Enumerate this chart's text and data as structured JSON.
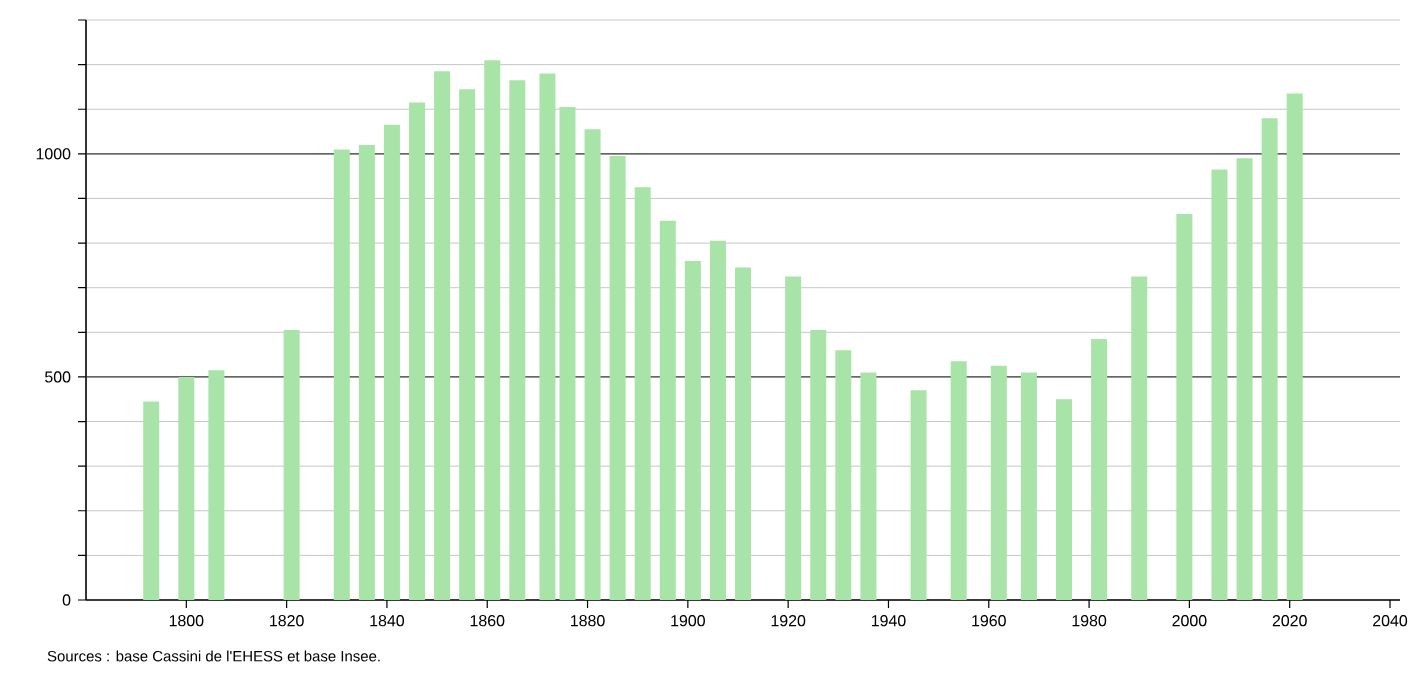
{
  "chart_data": {
    "type": "bar",
    "color": "#a8e4a8",
    "x": [
      1793,
      1800,
      1806,
      1821,
      1831,
      1836,
      1841,
      1846,
      1851,
      1856,
      1861,
      1866,
      1872,
      1876,
      1881,
      1886,
      1891,
      1896,
      1901,
      1906,
      1911,
      1921,
      1926,
      1931,
      1936,
      1946,
      1954,
      1962,
      1968,
      1975,
      1982,
      1990,
      1999,
      2006,
      2011,
      2016,
      2021
    ],
    "values": [
      445,
      500,
      515,
      605,
      1010,
      1020,
      1065,
      1115,
      1185,
      1145,
      1210,
      1165,
      1180,
      1105,
      1055,
      995,
      925,
      850,
      760,
      805,
      745,
      725,
      605,
      560,
      510,
      470,
      535,
      525,
      510,
      450,
      585,
      725,
      865,
      965,
      990,
      1080,
      1135
    ],
    "xlim": [
      1780,
      2042
    ],
    "xticks": [
      1800,
      1820,
      1840,
      1860,
      1880,
      1900,
      1920,
      1940,
      1960,
      1980,
      2000,
      2020,
      2040
    ],
    "ylim": [
      0,
      1300
    ],
    "yticks": [
      0,
      {
        "value": 100,
        "label": null
      },
      {
        "value": 200,
        "label": null
      },
      {
        "value": 300,
        "label": null
      },
      {
        "value": 400,
        "label": null
      },
      500,
      {
        "value": 600,
        "label": null
      },
      {
        "value": 700,
        "label": null
      },
      {
        "value": 800,
        "label": null
      },
      {
        "value": 900,
        "label": null
      },
      1000,
      {
        "value": 1100,
        "label": null
      },
      {
        "value": 1200,
        "label": null
      },
      {
        "value": 1300,
        "label": null
      }
    ],
    "grid": "y",
    "annotations": [
      "Sources : base Cassini de l'EHESS et base Insee."
    ]
  }
}
